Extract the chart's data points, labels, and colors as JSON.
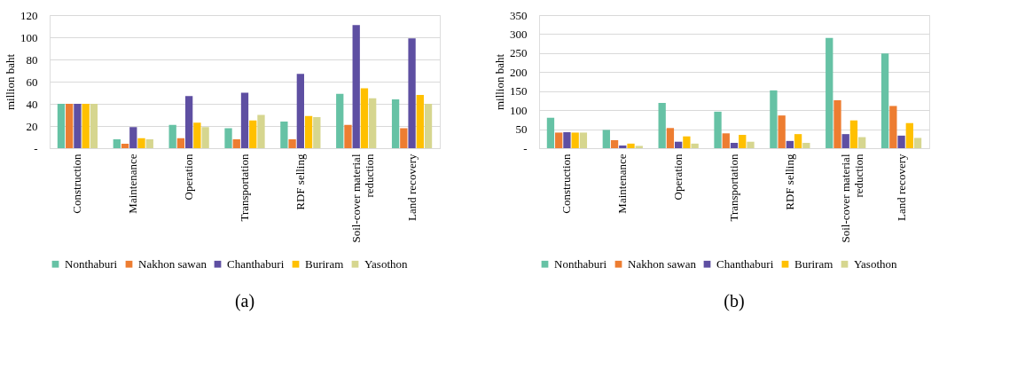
{
  "chart_data": [
    {
      "type": "bar",
      "title": "(a)",
      "ylabel": "million baht",
      "categories": [
        "Construction",
        "Maintenance",
        "Operation",
        "Transportation",
        "RDF selling",
        "Soil-cover material reduction",
        "Land recovery"
      ],
      "ylim": [
        0,
        120
      ],
      "yticks": [
        {
          "value": 0,
          "label": "-"
        },
        20,
        40,
        60,
        80,
        100,
        120
      ],
      "grid": "y",
      "legend": "bottom",
      "series": [
        {
          "name": "Nonthaburi",
          "color": "#66c2a5",
          "values": [
            40,
            8,
            21,
            18,
            24,
            49,
            44
          ]
        },
        {
          "name": "Nakhon sawan",
          "color": "#ed7d31",
          "values": [
            40,
            4,
            9,
            8,
            8,
            21,
            18
          ]
        },
        {
          "name": "Chanthaburi",
          "color": "#5e4fa2",
          "values": [
            40,
            19,
            47,
            50,
            67,
            111,
            99
          ]
        },
        {
          "name": "Buriram",
          "color": "#ffc000",
          "values": [
            40,
            9,
            23,
            25,
            29,
            54,
            48
          ]
        },
        {
          "name": "Yasothon",
          "color": "#d6d68f",
          "values": [
            40,
            8,
            19,
            30,
            28,
            45,
            40
          ]
        }
      ]
    },
    {
      "type": "bar",
      "title": "(b)",
      "ylabel": "million baht",
      "categories": [
        "Construction",
        "Maintenance",
        "Operation",
        "Transportation",
        "RDF selling",
        "Soil-cover material reduction",
        "Land recovery"
      ],
      "ylim": [
        0,
        350
      ],
      "yticks": [
        {
          "value": 0,
          "label": "-"
        },
        50,
        100,
        150,
        200,
        250,
        300,
        350
      ],
      "grid": "y",
      "legend": "bottom",
      "series": [
        {
          "name": "Nonthaburi",
          "color": "#66c2a5",
          "values": [
            80,
            48,
            119,
            96,
            152,
            290,
            249
          ]
        },
        {
          "name": "Nakhon sawan",
          "color": "#ed7d31",
          "values": [
            41,
            21,
            53,
            39,
            86,
            126,
            111
          ]
        },
        {
          "name": "Chanthaburi",
          "color": "#5e4fa2",
          "values": [
            42,
            7,
            17,
            14,
            19,
            37,
            33
          ]
        },
        {
          "name": "Buriram",
          "color": "#ffc000",
          "values": [
            41,
            12,
            31,
            35,
            37,
            73,
            66
          ]
        },
        {
          "name": "Yasothon",
          "color": "#d6d68f",
          "values": [
            41,
            6,
            12,
            17,
            14,
            29,
            27
          ]
        }
      ]
    }
  ]
}
